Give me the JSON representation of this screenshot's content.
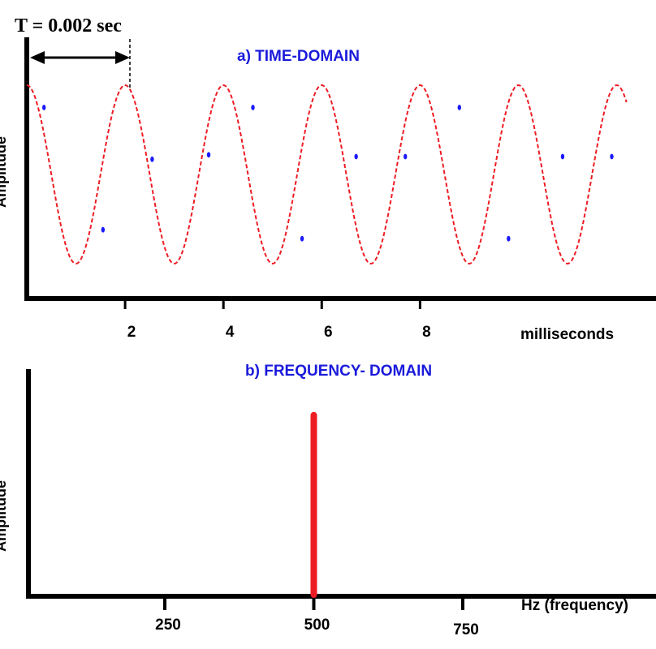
{
  "period_label": "T = 0.002 sec",
  "colors": {
    "wave": "#ee1c24",
    "sample_dot": "#1a1aff",
    "title": "#1a1adb",
    "axis": "#000000",
    "spike": "#ee1c24"
  },
  "chart_data": [
    {
      "type": "line",
      "title": "a) TIME-DOMAIN",
      "xlabel": "milliseconds",
      "ylabel": "Amplitude",
      "x_ticks": [
        2,
        4,
        6,
        8
      ],
      "xlim": [
        0,
        12.8
      ],
      "ylim": [
        -1,
        1
      ],
      "grid": false,
      "series": [
        {
          "style": "dashed",
          "function": "cosine",
          "period_ms": 2,
          "amplitude": 1,
          "x_range": [
            0,
            12.2
          ],
          "sample_points_x": [
            0.35,
            1.55,
            2.55,
            3.7,
            4.6,
            5.6,
            6.7,
            7.7,
            8.8,
            9.8,
            10.9,
            11.9
          ],
          "sample_points_y": [
            0.75,
            -0.62,
            0.17,
            0.22,
            0.75,
            -0.72,
            0.2,
            0.2,
            0.75,
            -0.72,
            0.2,
            0.2
          ]
        }
      ]
    },
    {
      "type": "bar",
      "title": "b) FREQUENCY- DOMAIN",
      "xlabel": "Hz (frequency)",
      "ylabel": "Amplitude",
      "x_ticks": [
        250,
        500,
        750
      ],
      "xlim": [
        0,
        1000
      ],
      "ylim": [
        0,
        1
      ],
      "grid": false,
      "bars": [
        {
          "x": 500,
          "value": 0.82
        }
      ]
    }
  ]
}
